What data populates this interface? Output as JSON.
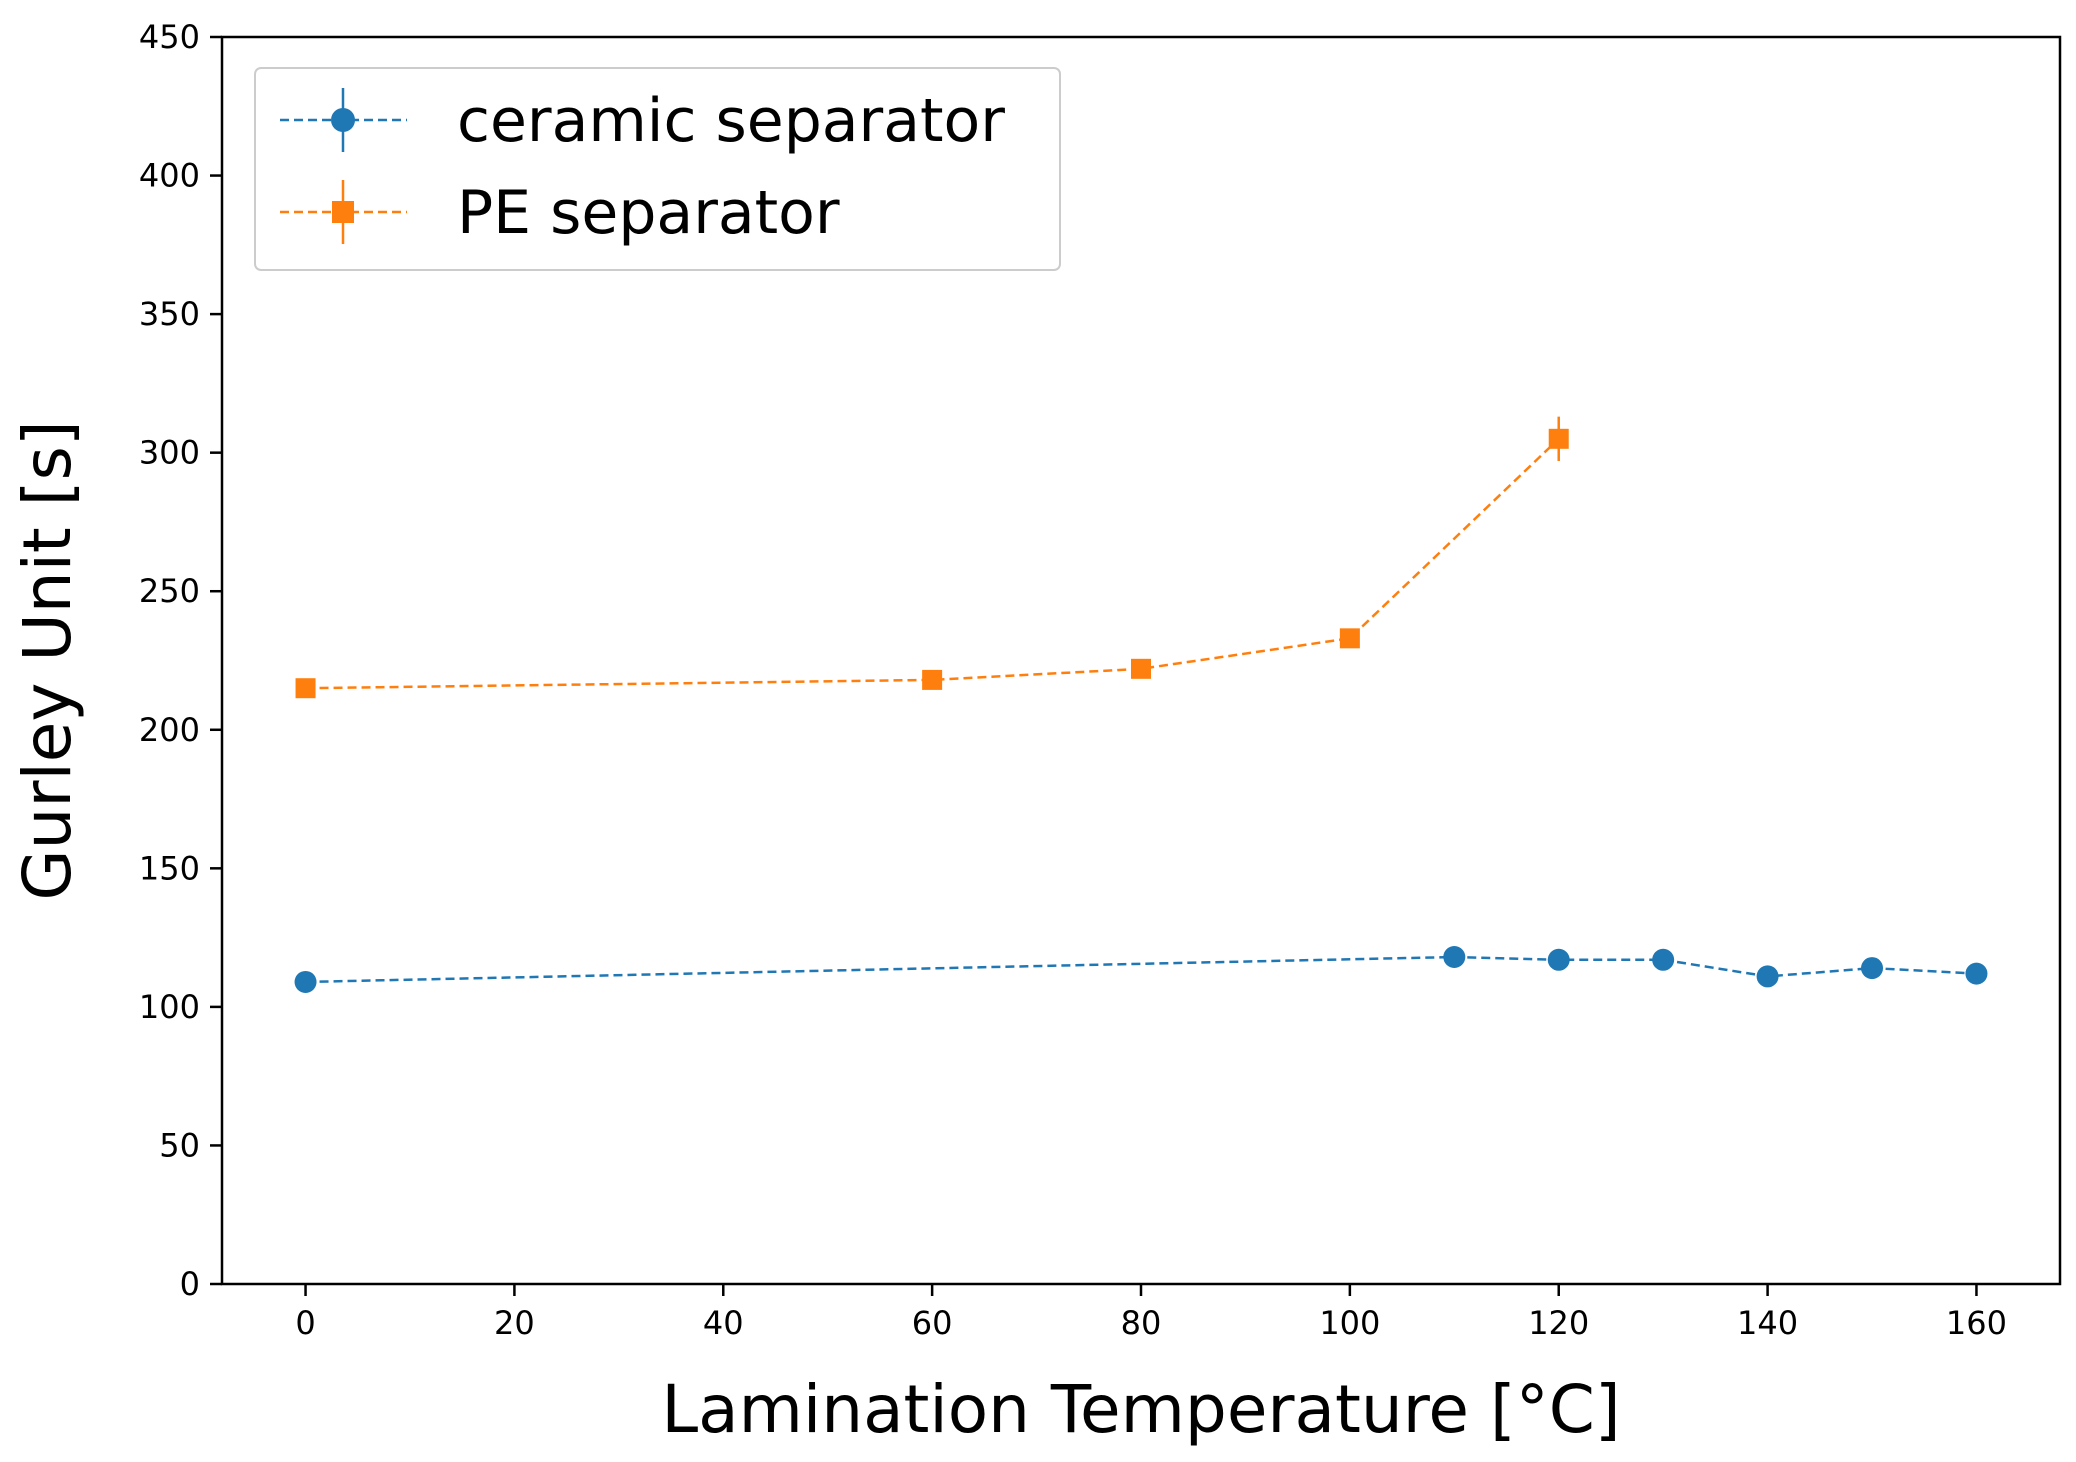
{
  "chart_data": {
    "type": "line",
    "title": "",
    "xlabel": "Lamination Temperature [°C]",
    "ylabel": "Gurley Unit [s]",
    "xlim": [
      -8,
      168
    ],
    "ylim": [
      0,
      450
    ],
    "xticks": [
      0,
      20,
      40,
      60,
      80,
      100,
      120,
      140,
      160
    ],
    "yticks": [
      0,
      50,
      100,
      150,
      200,
      250,
      300,
      350,
      400,
      450
    ],
    "grid": false,
    "legend_position": "top-left",
    "series": [
      {
        "name": "ceramic separator",
        "color": "#1f77b4",
        "marker": "circle",
        "linestyle": "dashed",
        "x": [
          0,
          110,
          120,
          130,
          140,
          150,
          160
        ],
        "y": [
          109,
          118,
          117,
          117,
          111,
          114,
          112
        ],
        "yerr": [
          1.5,
          1.5,
          1.5,
          1.5,
          1.5,
          1.5,
          1.5
        ]
      },
      {
        "name": "PE separator",
        "color": "#ff7f0e",
        "marker": "square",
        "linestyle": "dashed",
        "x": [
          0,
          60,
          80,
          100,
          120
        ],
        "y": [
          215,
          218,
          222,
          233,
          305
        ],
        "yerr": [
          1.5,
          1.5,
          1.5,
          2.5,
          8
        ]
      }
    ]
  }
}
